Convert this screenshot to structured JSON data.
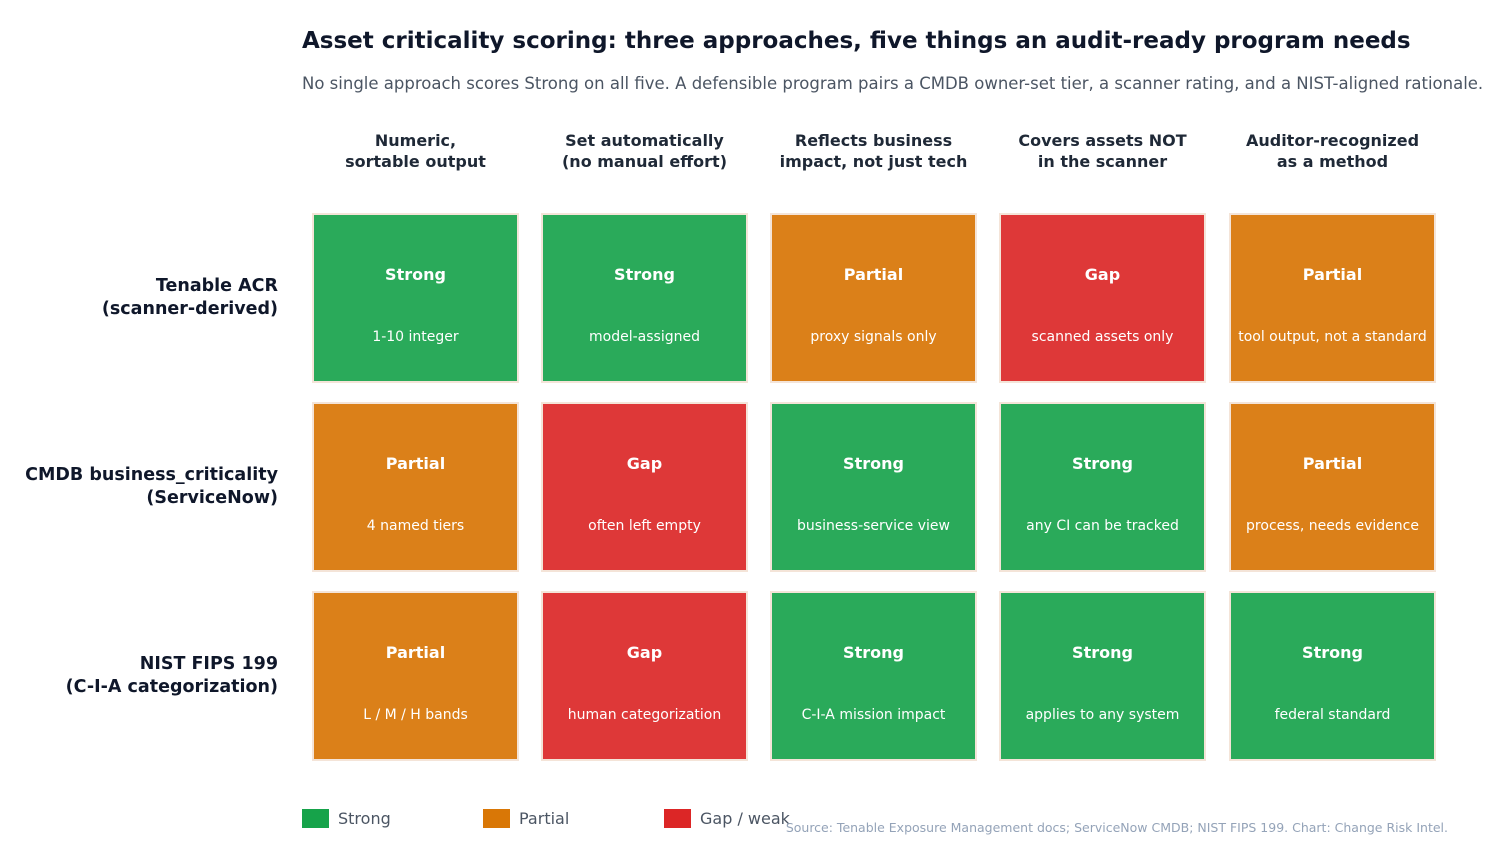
{
  "chart_data": {
    "type": "table",
    "title": "Asset criticality scoring: three approaches, five things an audit-ready program needs",
    "subtitle": "No single approach scores Strong on all five. A defensible program pairs a CMDB owner-set tier, a scanner rating, and a NIST-aligned rationale.",
    "columns": [
      "Numeric,\nsortable output",
      "Set automatically\n(no manual effort)",
      "Reflects business\nimpact, not just tech",
      "Covers assets NOT\nin the scanner",
      "Auditor-recognized\nas a method"
    ],
    "rows": [
      {
        "name": "Tenable ACR\n(scanner-derived)",
        "cells": [
          {
            "rating": "Strong",
            "note": "1-10 integer"
          },
          {
            "rating": "Strong",
            "note": "model-assigned"
          },
          {
            "rating": "Partial",
            "note": "proxy signals only"
          },
          {
            "rating": "Gap",
            "note": "scanned assets only"
          },
          {
            "rating": "Partial",
            "note": "tool output, not a standard"
          }
        ]
      },
      {
        "name": "CMDB business_criticality\n(ServiceNow)",
        "cells": [
          {
            "rating": "Partial",
            "note": "4 named tiers"
          },
          {
            "rating": "Gap",
            "note": "often left empty"
          },
          {
            "rating": "Strong",
            "note": "business-service view"
          },
          {
            "rating": "Strong",
            "note": "any CI can be tracked"
          },
          {
            "rating": "Partial",
            "note": "process, needs evidence"
          }
        ]
      },
      {
        "name": "NIST FIPS 199\n(C-I-A categorization)",
        "cells": [
          {
            "rating": "Partial",
            "note": "L / M / H bands"
          },
          {
            "rating": "Gap",
            "note": "human categorization"
          },
          {
            "rating": "Strong",
            "note": "C-I-A mission impact"
          },
          {
            "rating": "Strong",
            "note": "applies to any system"
          },
          {
            "rating": "Strong",
            "note": "federal standard"
          }
        ]
      }
    ],
    "cell_colors": {
      "Strong": "#2aaa5a",
      "Partial": "#db8019",
      "Gap": "#de3838"
    },
    "legend": [
      {
        "label": "Strong",
        "color": "#16a34a"
      },
      {
        "label": "Partial",
        "color": "#d97706"
      },
      {
        "label": "Gap / weak",
        "color": "#dc2626"
      }
    ],
    "legend_position": "bottom-left",
    "source": "Source: Tenable Exposure Management docs; ServiceNow CMDB; NIST FIPS 199. Chart: Change Risk Intel."
  }
}
